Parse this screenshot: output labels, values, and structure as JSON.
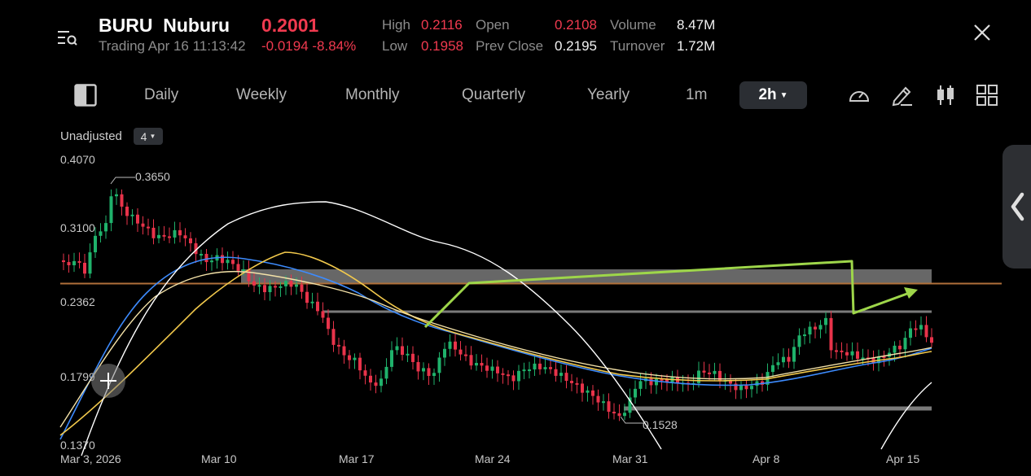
{
  "header": {
    "symbol": "BURU",
    "name": "Nuburu",
    "price": "0.2001",
    "status": "Trading Apr 16 11:13:42",
    "change": "-0.0194 -8.84%",
    "stats": {
      "high_label": "High",
      "high": "0.2116",
      "low_label": "Low",
      "low": "0.1958",
      "open_label": "Open",
      "open": "0.2108",
      "prev_close_label": "Prev Close",
      "prev_close": "0.2195",
      "volume_label": "Volume",
      "volume": "8.47M",
      "turnover_label": "Turnover",
      "turnover": "1.72M"
    }
  },
  "tabs": [
    "Daily",
    "Weekly",
    "Monthly",
    "Quarterly",
    "Yearly",
    "1m"
  ],
  "active_tab": "2h",
  "options": {
    "adjust": "Unadjusted",
    "indicator_count": "4"
  },
  "chart_data": {
    "type": "candlestick",
    "y_ticks": [
      "0.4070",
      "0.3100",
      "0.2362",
      "0.1799",
      "0.1370"
    ],
    "x_ticks": [
      "Mar 3, 2026",
      "Mar 10",
      "Mar 17",
      "Mar 24",
      "Mar 31",
      "Apr 8",
      "Apr 15"
    ],
    "annotations": {
      "high": "0.3650",
      "low": "0.1528"
    },
    "ylim": [
      0.137,
      0.407
    ],
    "colors": {
      "up": "#1fb26b",
      "down": "#e8334a",
      "ma1": "#3d8bfd",
      "ma2": "#f2c94c",
      "ma3": "#ffffff",
      "ma4": "#f4e2a8",
      "drawing": "#9ed64a"
    }
  }
}
